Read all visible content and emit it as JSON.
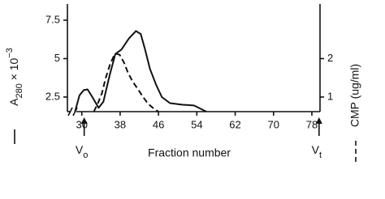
{
  "chart_data": {
    "type": "line",
    "x_label": "Fraction number",
    "y_label": {
      "main": "A",
      "sub": "280",
      "mid": " × 10",
      "sup": "−3"
    },
    "y2_label": "CMP (ug/ml)",
    "xlim": [
      27,
      79.7
    ],
    "xticks": [
      30,
      38,
      46,
      54,
      62,
      70,
      78
    ],
    "ylim": [
      1.55,
      8.55
    ],
    "yticks": [
      2.5,
      5,
      7.5
    ],
    "y2lim": [
      0.62,
      3.42
    ],
    "y2ticks": [
      1,
      2
    ],
    "series": [
      {
        "color": "#111111",
        "dash": false,
        "x": [
          28.6,
          29.5,
          30.4,
          31.2,
          32.2,
          33.5,
          34.5,
          35.8,
          37.0,
          38.3,
          39.8,
          41.3,
          42.3,
          43.2,
          44.2,
          45.5,
          46.7,
          48.4,
          50.9,
          53.4,
          56.0
        ],
        "values": [
          1.55,
          2.6,
          2.95,
          3.0,
          2.5,
          1.8,
          2.2,
          3.9,
          5.3,
          5.6,
          6.3,
          6.8,
          6.6,
          5.6,
          4.35,
          3.3,
          2.5,
          2.1,
          2.0,
          1.95,
          1.55
        ]
      },
      {
        "color": "#111111",
        "dash": true,
        "axis": "y2",
        "x": [
          32.5,
          33.4,
          34.2,
          35.0,
          35.9,
          36.6,
          37.1,
          37.9,
          38.8,
          39.6,
          40.6,
          41.7,
          42.8,
          43.8,
          45.0,
          46.0
        ],
        "values": [
          0.62,
          0.85,
          1.1,
          1.5,
          1.85,
          2.05,
          2.13,
          2.1,
          1.9,
          1.64,
          1.4,
          1.21,
          1.0,
          0.83,
          0.7,
          0.62
        ]
      }
    ],
    "annotations": [
      {
        "text": "V",
        "sub": "o",
        "x": 30.5
      },
      {
        "text": "V",
        "sub": "t",
        "x": 79.5
      }
    ]
  }
}
